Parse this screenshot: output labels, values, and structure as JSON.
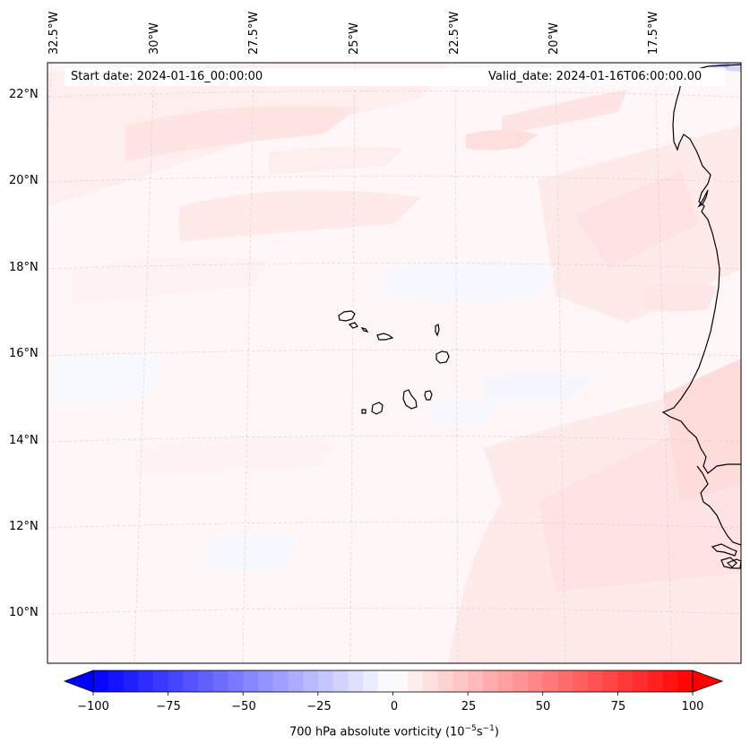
{
  "header": {
    "start_date": "Start date: 2024-01-16_00:00:00",
    "valid_date": "Valid_date: 2024-01-16T06:00:00.00"
  },
  "map": {
    "lon_labels": [
      "32.5°W",
      "30°W",
      "27.5°W",
      "25°W",
      "22.5°W",
      "20°W",
      "17.5°W"
    ],
    "lat_labels": [
      "22°N",
      "20°N",
      "18°N",
      "16°N",
      "14°N",
      "12°N",
      "10°N"
    ],
    "features": [
      "cape-verde-islands",
      "west-africa-coastline"
    ]
  },
  "colorbar": {
    "ticks": [
      "−100",
      "−75",
      "−50",
      "−25",
      "0",
      "25",
      "50",
      "75",
      "100"
    ],
    "label_main": "700 hPa absolute vorticity (10",
    "label_exp1": "−5",
    "label_mid": "s",
    "label_exp2": "−1",
    "label_end": ")",
    "min": -100,
    "max": 100,
    "negative_color": "#0000ff",
    "positive_color": "#ff0000",
    "center_color": "#ffffff"
  }
}
